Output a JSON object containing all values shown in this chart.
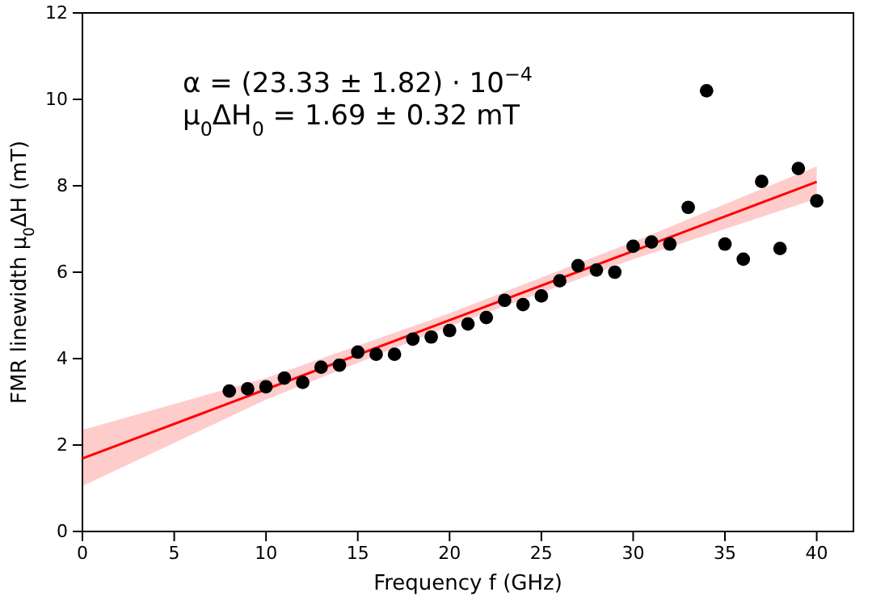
{
  "chart_data": {
    "type": "scatter",
    "xlabel": "Frequency f (GHz)",
    "ylabel": "FMR linewidth μ$_{0}$ΔH (mT)",
    "annotations": [
      "α = (23.33 ± 1.82) · 10$^{−4}$",
      "μ$_{0}$ΔH$_{0}$ = 1.69 ± 0.32 mT"
    ],
    "xlim": [
      0,
      42
    ],
    "ylim": [
      0,
      12
    ],
    "xticks": [
      0,
      5,
      10,
      15,
      20,
      25,
      30,
      35,
      40
    ],
    "yticks": [
      0,
      2,
      4,
      6,
      8,
      10,
      12
    ],
    "grid": false,
    "marker": "circle",
    "series": [
      {
        "type": "line",
        "color": "#ff0000",
        "line_style": "solid",
        "marker": "none",
        "x": [
          0,
          10,
          20,
          30,
          40
        ],
        "values": [
          1.69,
          3.29,
          4.89,
          6.49,
          8.09
        ],
        "lower": [
          1.05,
          3.05,
          4.75,
          6.3,
          7.7
        ],
        "upper": [
          2.35,
          3.55,
          5.05,
          6.7,
          8.45
        ]
      },
      {
        "color": "#000000",
        "x": [
          8,
          9,
          10,
          11,
          12,
          13,
          14,
          15,
          16,
          17,
          18,
          19,
          20,
          21,
          22,
          23,
          24,
          25,
          26,
          27,
          28,
          29,
          30,
          31,
          32,
          33,
          34,
          35,
          36,
          37,
          38,
          39,
          40
        ],
        "values": [
          3.25,
          3.3,
          3.35,
          3.55,
          3.45,
          3.8,
          3.85,
          4.15,
          4.1,
          4.1,
          4.45,
          4.5,
          4.65,
          4.8,
          4.95,
          5.35,
          5.25,
          5.45,
          5.8,
          6.15,
          6.05,
          6.0,
          6.6,
          6.7,
          6.65,
          7.5,
          10.2,
          6.65,
          6.3,
          8.1,
          6.55,
          8.4,
          7.65
        ]
      }
    ]
  }
}
